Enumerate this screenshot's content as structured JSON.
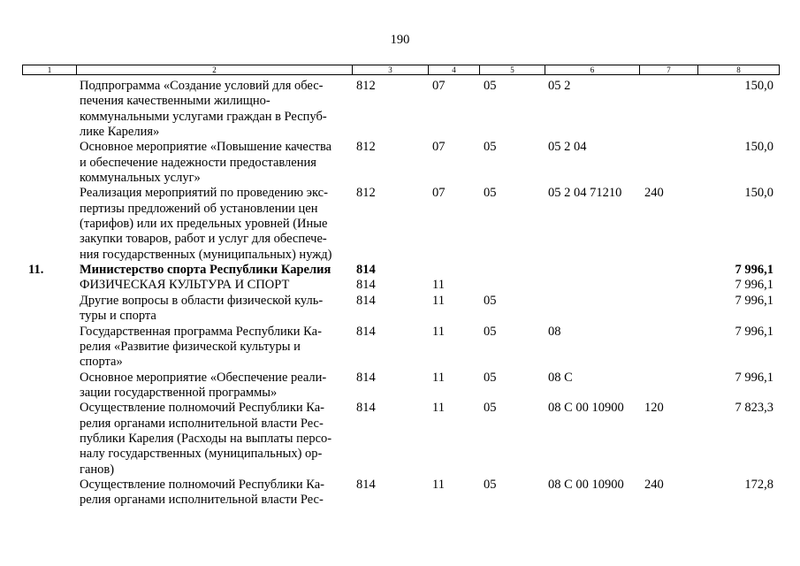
{
  "page_number": "190",
  "header": [
    "1",
    "2",
    "3",
    "4",
    "5",
    "6",
    "7",
    "8"
  ],
  "rows": [
    {
      "num": "",
      "name": "Подпрограмма «Создание условий для обес-\nпечения качественными жилищно-\nкоммунальными услугами граждан в Респуб-\nлике Карелия»",
      "c3": "812",
      "c4": "07",
      "c5": "05",
      "c6": "05 2",
      "c7": "",
      "c8": "150,0",
      "bold": false
    },
    {
      "num": "",
      "name": "Основное мероприятие «Повышение качества\nи обеспечение надежности предоставления\nкоммунальных услуг»",
      "c3": "812",
      "c4": "07",
      "c5": "05",
      "c6": "05 2 04",
      "c7": "",
      "c8": "150,0",
      "bold": false
    },
    {
      "num": "",
      "name": "Реализация мероприятий по проведению экс-\nпертизы предложений об установлении цен\n(тарифов) или их предельных уровней (Иные\nзакупки товаров, работ и услуг для обеспече-\nния государственных (муниципальных) нужд)",
      "c3": "812",
      "c4": "07",
      "c5": "05",
      "c6": "05 2 04 71210",
      "c7": "240",
      "c8": "150,0",
      "bold": false
    },
    {
      "num": "11.",
      "name": "Министерство спорта Республики Карелия",
      "c3": "814",
      "c4": "",
      "c5": "",
      "c6": "",
      "c7": "",
      "c8": "7 996,1",
      "bold": true
    },
    {
      "num": "",
      "name": "ФИЗИЧЕСКАЯ КУЛЬТУРА И СПОРТ",
      "c3": "814",
      "c4": "11",
      "c5": "",
      "c6": "",
      "c7": "",
      "c8": "7 996,1",
      "bold": false
    },
    {
      "num": "",
      "name": "Другие вопросы в области физической куль-\nтуры и спорта",
      "c3": "814",
      "c4": "11",
      "c5": "05",
      "c6": "",
      "c7": "",
      "c8": "7 996,1",
      "bold": false
    },
    {
      "num": "",
      "name": "Государственная программа Республики Ка-\nрелия «Развитие физической культуры и\nспорта»",
      "c3": "814",
      "c4": "11",
      "c5": "05",
      "c6": "08",
      "c7": "",
      "c8": "7 996,1",
      "bold": false
    },
    {
      "num": "",
      "name": "Основное мероприятие «Обеспечение реали-\nзации государственной программы»",
      "c3": "814",
      "c4": "11",
      "c5": "05",
      "c6": "08 С",
      "c7": "",
      "c8": "7 996,1",
      "bold": false
    },
    {
      "num": "",
      "name": "Осуществление полномочий Республики Ка-\nрелия органами исполнительной власти Рес-\nпублики Карелия (Расходы на выплаты персо-\nналу государственных (муниципальных) ор-\nганов)",
      "c3": "814",
      "c4": "11",
      "c5": "05",
      "c6": "08 С 00 10900",
      "c7": "120",
      "c8": "7 823,3",
      "bold": false
    },
    {
      "num": "",
      "name": "Осуществление полномочий Республики Ка-\nрелия органами исполнительной власти Рес-",
      "c3": "814",
      "c4": "11",
      "c5": "05",
      "c6": "08 С 00 10900",
      "c7": "240",
      "c8": "172,8",
      "bold": false
    }
  ]
}
